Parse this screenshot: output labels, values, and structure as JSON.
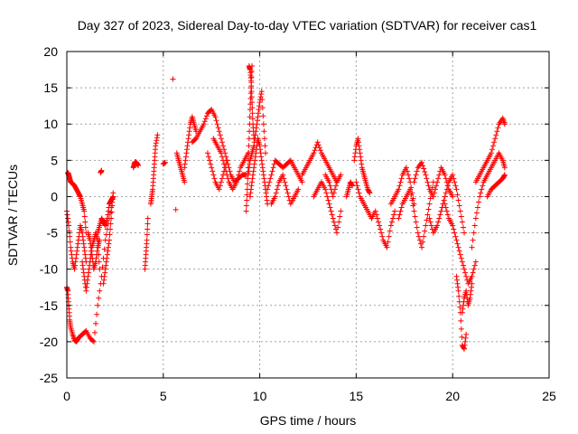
{
  "chart_data": {
    "type": "scatter",
    "title": "Day 327 of 2023, Sidereal Day-to-day VTEC variation (SDTVAR) for receiver cas1",
    "xlabel": "GPS time / hours",
    "ylabel": "SDTVAR / TECUs",
    "xlim": [
      0,
      25
    ],
    "ylim": [
      -25,
      20
    ],
    "xticks": [
      0,
      5,
      10,
      15,
      20,
      25
    ],
    "yticks": [
      -25,
      -20,
      -15,
      -10,
      -5,
      0,
      5,
      10,
      15,
      20
    ],
    "grid": true,
    "marker": "+",
    "marker_color": "#ff0000",
    "series": [
      {
        "name": "cas1",
        "segments": [
          {
            "x": [
              0.0,
              0.05,
              0.1,
              0.15,
              0.2,
              0.3,
              0.4,
              0.5,
              0.6,
              0.8,
              1.0,
              1.2,
              1.4,
              1.6,
              1.8,
              2.0,
              2.2,
              2.4
            ],
            "y": [
              -12.5,
              -13,
              -15,
              -17,
              -18,
              -19,
              -19.8,
              -20,
              -19.5,
              -19,
              -18.5,
              -19.5,
              -20,
              -15,
              -11,
              -6,
              -3,
              0
            ]
          },
          {
            "x": [
              0.05,
              0.1,
              0.15,
              0.2,
              0.3,
              0.4,
              0.5,
              0.6,
              0.7,
              0.8,
              0.9,
              1.0
            ],
            "y": [
              3.3,
              3,
              2.5,
              2,
              1.8,
              1.5,
              1,
              0.5,
              0,
              -1,
              -2,
              -5
            ]
          },
          {
            "x": [
              0.0,
              0.1,
              0.2,
              0.3,
              0.4,
              0.5,
              0.6,
              0.7,
              0.8,
              0.9,
              1.0
            ],
            "y": [
              -2,
              -4,
              -7,
              -9,
              -10,
              -8,
              -6,
              -4,
              -5,
              -7,
              -9
            ]
          },
          {
            "x": [
              0.8,
              0.9,
              1.0,
              1.1,
              1.2,
              1.3,
              1.4,
              1.5,
              1.6,
              1.7
            ],
            "y": [
              -9,
              -11,
              -13,
              -11,
              -9,
              -7,
              -6,
              -5,
              -6,
              -10
            ]
          },
          {
            "x": [
              1.1,
              1.2,
              1.3,
              1.4,
              1.5,
              1.6,
              1.7
            ],
            "y": [
              -5,
              -6,
              -8,
              -10,
              -9,
              -7,
              -6
            ]
          },
          {
            "x": [
              1.6,
              1.7,
              1.8,
              1.9,
              2.0,
              2.1,
              2.2,
              2.3,
              2.4
            ],
            "y": [
              -5,
              -4,
              -3,
              -3.5,
              -4,
              -3,
              -1,
              -0.5,
              0
            ]
          },
          {
            "x": [
              1.9,
              2.0,
              2.1,
              2.2,
              2.3,
              2.4
            ],
            "y": [
              -12,
              -10,
              -8,
              -6,
              -3,
              0.5
            ]
          },
          {
            "x": [
              1.75,
              1.8
            ],
            "y": [
              3.3,
              3.6
            ]
          },
          {
            "x": [
              3.45,
              3.5,
              3.55,
              3.6,
              3.65,
              3.7
            ],
            "y": [
              4,
              4.5,
              4.8,
              4.7,
              4.5,
              4.3
            ]
          },
          {
            "x": [
              4.05,
              4.1,
              4.15,
              4.2
            ],
            "y": [
              -10,
              -8,
              -6,
              -3
            ]
          },
          {
            "x": [
              4.35,
              4.4,
              4.45,
              4.5,
              4.55,
              4.6,
              4.7
            ],
            "y": [
              -1,
              0,
              1,
              3,
              5,
              7,
              8.5
            ]
          },
          {
            "x": [
              5.0,
              5.1
            ],
            "y": [
              4.5,
              4.7
            ]
          },
          {
            "x": [
              5.5
            ],
            "y": [
              16.2
            ]
          },
          {
            "x": [
              5.65
            ],
            "y": [
              -1.8
            ]
          },
          {
            "x": [
              5.7,
              5.8,
              5.9,
              6.0,
              6.1
            ],
            "y": [
              6,
              5,
              4,
              3,
              2
            ]
          },
          {
            "x": [
              6.1,
              6.2,
              6.3,
              6.4,
              6.5,
              6.6,
              6.7
            ],
            "y": [
              4,
              6,
              8,
              10,
              11,
              10,
              9
            ]
          },
          {
            "x": [
              6.5,
              6.7,
              6.9,
              7.1,
              7.3,
              7.5,
              7.7,
              7.9,
              8.1,
              8.3,
              8.5,
              8.7,
              8.9,
              9.1,
              9.3
            ],
            "y": [
              7.5,
              8,
              9,
              10,
              11.5,
              12,
              11,
              9,
              7,
              5,
              3,
              2,
              2.5,
              3,
              3
            ]
          },
          {
            "x": [
              7.3,
              7.5,
              7.7,
              7.9,
              8.1,
              8.3
            ],
            "y": [
              6,
              4,
              2,
              1,
              3,
              5
            ]
          },
          {
            "x": [
              7.6,
              7.8,
              8.0,
              8.2,
              8.4,
              8.6,
              8.8,
              9.0,
              9.2,
              9.4
            ],
            "y": [
              8,
              7,
              6,
              4,
              2,
              1,
              2,
              4,
              5,
              6
            ]
          },
          {
            "x": [
              9.3,
              9.35,
              9.4,
              9.45,
              9.5,
              9.55,
              9.6
            ],
            "y": [
              -2,
              1,
              4,
              8,
              12,
              15,
              18
            ]
          },
          {
            "x": [
              9.45,
              9.5,
              9.55,
              9.6,
              9.65,
              9.7
            ],
            "y": [
              18,
              17.5,
              16,
              13,
              10,
              8
            ]
          },
          {
            "x": [
              9.4,
              9.5,
              9.6,
              9.7,
              9.8,
              9.9,
              10.0,
              10.1,
              10.2,
              10.3
            ],
            "y": [
              3,
              5,
              6,
              7,
              9,
              11,
              13,
              14.5,
              10,
              6
            ]
          },
          {
            "x": [
              9.5,
              9.6,
              9.7,
              9.8,
              9.9,
              10.0,
              10.1,
              10.2,
              10.3,
              10.4
            ],
            "y": [
              0,
              2,
              4,
              6,
              8,
              7,
              5,
              3,
              1,
              -1
            ]
          },
          {
            "x": [
              10.4,
              10.6,
              10.8,
              11.0,
              11.2,
              11.4,
              11.6,
              11.8,
              12.0,
              12.2
            ],
            "y": [
              1,
              3,
              5,
              4.5,
              4,
              4.5,
              5,
              4,
              3,
              2
            ]
          },
          {
            "x": [
              10.6,
              10.8,
              11.0,
              11.2,
              11.4,
              11.6,
              11.8,
              12.0
            ],
            "y": [
              -1,
              0,
              2,
              3,
              1,
              -1,
              0,
              1
            ]
          },
          {
            "x": [
              12.2,
              12.4,
              12.6,
              12.8,
              13.0,
              13.2,
              13.4,
              13.6,
              13.8,
              14.0
            ],
            "y": [
              3,
              4,
              5,
              6,
              7.5,
              6,
              5,
              4,
              3,
              2
            ]
          },
          {
            "x": [
              12.8,
              13.0,
              13.2,
              13.4,
              13.6,
              13.8,
              14.0,
              14.2
            ],
            "y": [
              0,
              1,
              2,
              1,
              -1,
              -3,
              -5,
              -2
            ]
          },
          {
            "x": [
              13.4,
              13.6,
              13.8,
              14.0,
              14.2
            ],
            "y": [
              3,
              2,
              0,
              2,
              3
            ]
          },
          {
            "x": [
              14.5,
              14.6,
              14.7,
              14.8
            ],
            "y": [
              0,
              1,
              2,
              1.5
            ]
          },
          {
            "x": [
              14.9,
              15.0,
              15.1,
              15.2,
              15.3,
              15.4,
              15.5,
              15.6,
              15.7
            ],
            "y": [
              5,
              7,
              8,
              6,
              4,
              3,
              2,
              1,
              0.5
            ]
          },
          {
            "x": [
              15.0,
              15.2,
              15.4,
              15.6,
              15.8,
              16.0,
              16.2,
              16.4,
              16.6,
              16.8,
              17.0
            ],
            "y": [
              2,
              0,
              -1,
              -2,
              -3,
              -2,
              -4,
              -6,
              -7,
              -4,
              -2
            ]
          },
          {
            "x": [
              16.8,
              17.0,
              17.2,
              17.4,
              17.6,
              17.8,
              18.0
            ],
            "y": [
              -1,
              0,
              1,
              3,
              4,
              2,
              -1
            ]
          },
          {
            "x": [
              17.2,
              17.4,
              17.6,
              17.8,
              18.0,
              18.2,
              18.4,
              18.6,
              18.8,
              19.0
            ],
            "y": [
              -3,
              -1,
              0,
              1,
              -2,
              -5,
              -7,
              -4,
              -1,
              2
            ]
          },
          {
            "x": [
              18.0,
              18.2,
              18.4,
              18.6,
              18.8,
              19.0,
              19.2,
              19.4,
              19.6,
              19.8,
              20.0
            ],
            "y": [
              2,
              4,
              4.7,
              3,
              1,
              0,
              2,
              4,
              3,
              1,
              0
            ]
          },
          {
            "x": [
              18.8,
              19.0,
              19.2,
              19.4,
              19.6,
              19.8,
              20.0,
              20.2,
              20.4,
              20.6
            ],
            "y": [
              -3,
              -5,
              -4,
              -2,
              0,
              2,
              3,
              1,
              -2,
              -5
            ]
          },
          {
            "x": [
              19.6,
              19.8,
              20.0,
              20.2,
              20.4,
              20.6,
              20.8,
              21.0,
              21.2
            ],
            "y": [
              -1,
              -3,
              -4,
              -6,
              -8,
              -10,
              -12,
              -11,
              -9
            ]
          },
          {
            "x": [
              20.2,
              20.3,
              20.4,
              20.5,
              20.6,
              20.7
            ],
            "y": [
              -11,
              -13,
              -16,
              -20.5,
              -21,
              -19
            ]
          },
          {
            "x": [
              20.5,
              20.6,
              20.7,
              20.8,
              20.9,
              21.0
            ],
            "y": [
              -16,
              -14,
              -13,
              -15,
              -14,
              -12
            ]
          },
          {
            "x": [
              21.0,
              21.2,
              21.4,
              21.6,
              21.8,
              22.0,
              22.2,
              22.4,
              22.6,
              22.7
            ],
            "y": [
              -7,
              -3,
              0,
              2,
              3,
              4,
              5,
              6,
              5,
              4
            ]
          },
          {
            "x": [
              21.2,
              21.4,
              21.6,
              21.8,
              22.0,
              22.2,
              22.4,
              22.6,
              22.7
            ],
            "y": [
              2,
              3,
              4,
              5,
              6,
              8,
              10,
              10.8,
              10
            ]
          },
          {
            "x": [
              21.8,
              22.0,
              22.2,
              22.4,
              22.6,
              22.7
            ],
            "y": [
              0,
              1,
              1.5,
              2,
              2.5,
              3
            ]
          }
        ]
      }
    ]
  }
}
